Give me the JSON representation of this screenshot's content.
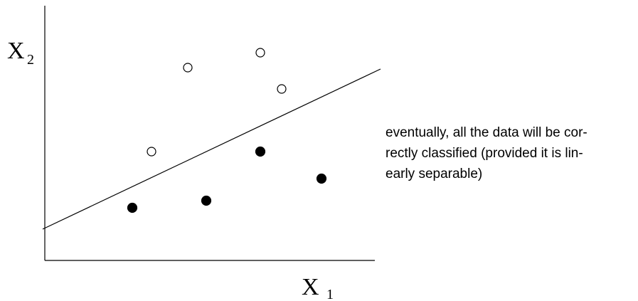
{
  "axes": {
    "y_label": "X",
    "y_sub": "2",
    "x_label": "X",
    "x_sub": "1"
  },
  "caption": {
    "lines": [
      "eventually, all the data will be cor-",
      "rectly classified (provided it is lin-",
      "early separable)"
    ]
  },
  "colors": {
    "ink": "#000000",
    "background": "#ffffff"
  },
  "points": {
    "open": [
      {
        "x": 213,
        "y": 213
      },
      {
        "x": 264,
        "y": 95
      },
      {
        "x": 366,
        "y": 74
      },
      {
        "x": 396,
        "y": 125
      }
    ],
    "filled": [
      {
        "x": 186,
        "y": 292
      },
      {
        "x": 290,
        "y": 282
      },
      {
        "x": 366,
        "y": 213
      },
      {
        "x": 452,
        "y": 251
      }
    ]
  },
  "separator": {
    "from": {
      "x": 60,
      "y": 322
    },
    "to": {
      "x": 535,
      "y": 97
    }
  }
}
